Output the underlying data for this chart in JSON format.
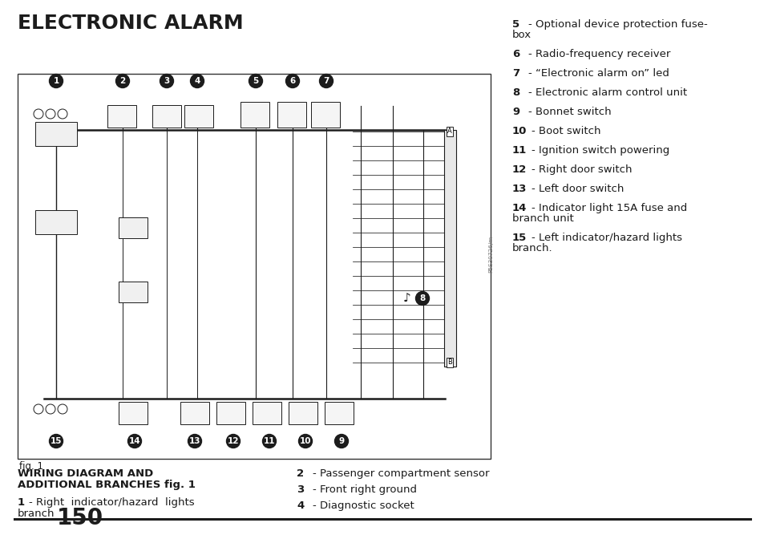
{
  "title": "ELECTRONIC ALARM",
  "bg_color": "#ffffff",
  "text_color": "#1a1a1a",
  "page_number": "150",
  "right_column_items": [
    {
      "num": "5",
      "text": "- Optional device protection fuse-\nbox",
      "wrapped": true
    },
    {
      "num": "6",
      "text": "- Radio-frequency receiver",
      "wrapped": false
    },
    {
      "num": "7",
      "text": "- “Electronic alarm on” led",
      "wrapped": false
    },
    {
      "num": "8",
      "text": "- Electronic alarm control unit",
      "wrapped": false
    },
    {
      "num": "9",
      "text": "- Bonnet switch",
      "wrapped": false
    },
    {
      "num": "10",
      "text": "- Boot switch",
      "wrapped": false
    },
    {
      "num": "11",
      "text": "- Ignition switch powering",
      "wrapped": false
    },
    {
      "num": "12",
      "text": "- Right door switch",
      "wrapped": false
    },
    {
      "num": "13",
      "text": "- Left door switch",
      "wrapped": false
    },
    {
      "num": "14",
      "text": "- Indicator light 15A fuse and\nbranch unit",
      "wrapped": true
    },
    {
      "num": "15",
      "text": "- Left indicator/hazard lights\nbranch.",
      "wrapped": true
    }
  ],
  "bottom_section_title_line1": "WIRING DIAGRAM AND",
  "bottom_section_title_line2": "ADDITIONAL BRANCHES fig. 1",
  "bottom_left_item_num": "1",
  "bottom_left_item_line1": "- Right  indicator/hazard  lights",
  "bottom_left_item_line2": "branch",
  "bottom_right_items": [
    {
      "num": "2",
      "text": "- Passenger compartment sensor"
    },
    {
      "num": "3",
      "text": "- Front right ground"
    },
    {
      "num": "4",
      "text": "- Diagnostic socket"
    }
  ],
  "fig_label": "fig. 1",
  "title_fontsize": 18,
  "body_fontsize": 9.5,
  "bold_fontsize": 9.5,
  "section_title_fontsize": 9.5,
  "page_num_fontsize": 20
}
